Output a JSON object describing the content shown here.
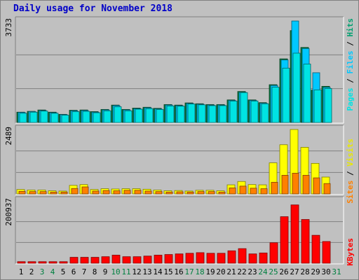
{
  "title": "Daily usage for November 2018",
  "colors": {
    "pages": "#00e3e3",
    "files": "#00c8ff",
    "hits": "#008040",
    "visits": "#ffff00",
    "sites": "#ff8000",
    "kbytes": "#ff0000",
    "label_blue": "#0000c8",
    "weekend": "#008040"
  },
  "chart_data": [
    {
      "type": "bar",
      "ylabel": "3733",
      "legend": [
        "Pages",
        "Files",
        "Hits"
      ],
      "ylim": [
        0,
        3733
      ],
      "categories": [
        "1",
        "2",
        "3",
        "4",
        "5",
        "6",
        "7",
        "8",
        "9",
        "10",
        "11",
        "12",
        "13",
        "14",
        "15",
        "16",
        "17",
        "18",
        "19",
        "20",
        "21",
        "22",
        "23",
        "24",
        "25",
        "26",
        "27",
        "28",
        "29",
        "30",
        "31"
      ],
      "weekend_days": [
        "3",
        "4",
        "10",
        "11",
        "17",
        "18",
        "24",
        "25",
        "31"
      ],
      "series": [
        {
          "name": "Hits",
          "values": [
            380,
            410,
            460,
            380,
            300,
            450,
            460,
            400,
            480,
            640,
            480,
            530,
            560,
            520,
            660,
            640,
            720,
            690,
            660,
            660,
            830,
            1140,
            830,
            730,
            1390,
            2340,
            3380,
            2760,
            1190,
            1330,
            0
          ]
        },
        {
          "name": "Files",
          "values": [
            370,
            400,
            440,
            360,
            290,
            430,
            440,
            380,
            460,
            620,
            460,
            510,
            540,
            500,
            640,
            620,
            700,
            670,
            640,
            640,
            810,
            1110,
            810,
            710,
            1360,
            2300,
            3733,
            2720,
            1830,
            1290,
            0
          ]
        },
        {
          "name": "Pages",
          "values": [
            340,
            380,
            420,
            340,
            270,
            400,
            410,
            360,
            430,
            580,
            430,
            490,
            510,
            480,
            610,
            600,
            680,
            650,
            620,
            620,
            790,
            1100,
            790,
            690,
            1300,
            2000,
            2550,
            2150,
            1200,
            1250,
            0
          ]
        }
      ]
    },
    {
      "type": "bar",
      "ylabel": "2489",
      "legend": [
        "Sites",
        "Visits"
      ],
      "ylim": [
        0,
        2489
      ],
      "categories": [
        "1",
        "2",
        "3",
        "4",
        "5",
        "6",
        "7",
        "8",
        "9",
        "10",
        "11",
        "12",
        "13",
        "14",
        "15",
        "16",
        "17",
        "18",
        "19",
        "20",
        "21",
        "22",
        "23",
        "24",
        "25",
        "26",
        "27",
        "28",
        "29",
        "30",
        "31"
      ],
      "series": [
        {
          "name": "Visits",
          "values": [
            170,
            150,
            150,
            120,
            110,
            330,
            360,
            170,
            200,
            190,
            200,
            200,
            180,
            150,
            120,
            130,
            110,
            140,
            140,
            120,
            350,
            480,
            360,
            350,
            1200,
            1900,
            2489,
            1800,
            1180,
            650,
            0
          ]
        },
        {
          "name": "Sites",
          "values": [
            100,
            90,
            90,
            70,
            70,
            210,
            270,
            110,
            130,
            120,
            140,
            140,
            110,
            90,
            70,
            80,
            70,
            90,
            90,
            70,
            230,
            300,
            220,
            200,
            450,
            720,
            800,
            720,
            620,
            400,
            0
          ]
        }
      ]
    },
    {
      "type": "bar",
      "ylabel": "200937",
      "legend": [
        "KBytes"
      ],
      "ylim": [
        0,
        200937
      ],
      "categories": [
        "1",
        "2",
        "3",
        "4",
        "5",
        "6",
        "7",
        "8",
        "9",
        "10",
        "11",
        "12",
        "13",
        "14",
        "15",
        "16",
        "17",
        "18",
        "19",
        "20",
        "21",
        "22",
        "23",
        "24",
        "25",
        "26",
        "27",
        "28",
        "29",
        "30",
        "31"
      ],
      "series": [
        {
          "name": "KBytes",
          "values": [
            5000,
            5000,
            5000,
            5000,
            5000,
            19000,
            19000,
            19000,
            21000,
            26000,
            21000,
            21000,
            23000,
            26000,
            28000,
            30000,
            32000,
            34000,
            32000,
            32000,
            40000,
            47000,
            30000,
            33000,
            66000,
            150000,
            188000,
            141000,
            90000,
            70000,
            0
          ]
        }
      ]
    }
  ]
}
